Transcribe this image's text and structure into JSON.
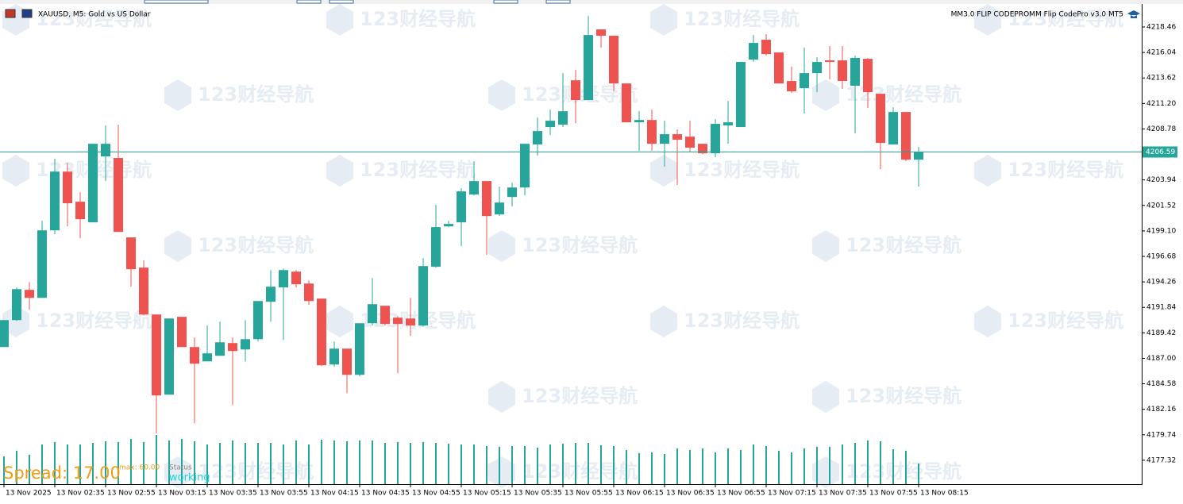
{
  "chart_data": {
    "type": "candlestick",
    "title": "XAUUSD, M5:  Gold vs US Dollar",
    "indicator": "MM3.0 FLIP CODEPROMM Flip CodePro v3.0 MT5",
    "watermark": "123财经导航",
    "up_color": "#26a69a",
    "down_color": "#ef5350",
    "categories": [
      "13 Nov 2025",
      null,
      null,
      null,
      "13 Nov 02:35",
      null,
      null,
      null,
      "13 Nov 02:55",
      null,
      null,
      null,
      "13 Nov 03:15",
      null,
      null,
      null,
      "13 Nov 03:35",
      null,
      null,
      null,
      "13 Nov 03:55",
      null,
      null,
      null,
      "13 Nov 04:15",
      null,
      null,
      null,
      "13 Nov 04:35",
      null,
      null,
      null,
      "13 Nov 04:55",
      null,
      null,
      null,
      "13 Nov 05:15",
      null,
      null,
      null,
      "13 Nov 05:35",
      null,
      null,
      null,
      "13 Nov 05:55",
      null,
      null,
      null,
      "13 Nov 06:15",
      null,
      null,
      null,
      "13 Nov 06:35",
      null,
      null,
      null,
      "13 Nov 06:55",
      null,
      null,
      null,
      "13 Nov 07:15",
      null,
      null,
      null,
      "13 Nov 07:35",
      null,
      null,
      null,
      "13 Nov 07:55",
      null,
      null,
      null,
      "13 Nov 08:15"
    ],
    "open": [
      4188.07,
      4190.63,
      4193.5,
      4192.74,
      4199.15,
      4204.73,
      4201.87,
      4199.91,
      4206.17,
      4206.02,
      4198.48,
      4195.61,
      4191.16,
      4183.55,
      4190.94,
      4188.07,
      4186.71,
      4187.24,
      4188.45,
      4187.84,
      4188.82,
      4192.37,
      4193.73,
      4195.23,
      4194.1,
      4192.67,
      4186.41,
      4187.92,
      4185.43,
      4190.33,
      4191.99,
      4190.86,
      4190.78,
      4190.11,
      4195.69,
      4199.53,
      4199.91,
      4202.55,
      4203.83,
      4200.66,
      4202.32,
      4203.22,
      4207.3,
      4208.96,
      4209.18,
      4213.4,
      4211.52,
      4218.23,
      4217.63,
      4213.1,
      4209.41,
      4209.63,
      4207.37,
      4208.28,
      4208.05,
      4207.37,
      4206.47,
      4209.11,
      4208.96,
      4215.36,
      4217.25,
      4216.04,
      4213.33,
      4212.65,
      4214.08,
      4215.29,
      4215.29,
      4212.88,
      4215.44,
      4212.12,
      4207.3,
      4210.39,
      4205.86
    ],
    "high": [
      4190.63,
      4193.73,
      4194.25,
      4200.06,
      4205.94,
      4205.56,
      4202.77,
      4207.37,
      4209.11,
      4209.18,
      4198.48,
      4196.29,
      4191.16,
      4190.78,
      4190.94,
      4188.97,
      4190.11,
      4190.48,
      4188.97,
      4190.63,
      4192.44,
      4195.38,
      4195.53,
      4195.38,
      4194.4,
      4192.67,
      4188.6,
      4187.92,
      4190.33,
      4194.63,
      4191.99,
      4191.01,
      4192.74,
      4196.51,
      4201.57,
      4200.06,
      4203.15,
      4205.71,
      4203.83,
      4203.3,
      4203.68,
      4207.37,
      4209.86,
      4210.61,
      4214.08,
      4214.38,
      4219.51,
      4218.23,
      4217.63,
      4213.1,
      4210.46,
      4210.61,
      4209.56,
      4208.73,
      4209.56,
      4207.37,
      4209.71,
      4211.44,
      4215.14,
      4217.7,
      4217.78,
      4216.04,
      4214.69,
      4216.5,
      4215.59,
      4216.65,
      4216.65,
      4215.74,
      4215.52,
      4212.12,
      4210.84,
      4210.39,
      4207.07
    ],
    "low": [
      4188.07,
      4190.56,
      4191.61,
      4192.74,
      4198.78,
      4199.53,
      4198.4,
      4199.91,
      4203.83,
      4199.0,
      4193.8,
      4191.09,
      4179.85,
      4183.55,
      4188.07,
      4180.83,
      4186.71,
      4187.24,
      4182.57,
      4186.71,
      4188.6,
      4190.48,
      4188.75,
      4193.73,
      4192.07,
      4186.26,
      4186.19,
      4183.7,
      4185.28,
      4190.11,
      4190.11,
      4185.58,
      4189.13,
      4190.03,
      4195.61,
      4199.46,
      4197.65,
      4202.47,
      4196.82,
      4200.51,
      4201.42,
      4202.47,
      4206.24,
      4208.2,
      4208.96,
      4209.33,
      4211.52,
      4216.5,
      4212.35,
      4209.41,
      4206.69,
      4206.69,
      4205.19,
      4203.45,
      4206.62,
      4206.39,
      4206.09,
      4207.37,
      4208.96,
      4215.14,
      4215.74,
      4213.1,
      4212.2,
      4210.24,
      4212.27,
      4213.48,
      4212.58,
      4208.35,
      4210.77,
      4204.96,
      4207.3,
      4205.71,
      4203.3
    ],
    "close": [
      4190.63,
      4193.57,
      4192.74,
      4199.15,
      4204.73,
      4201.72,
      4200.21,
      4207.37,
      4207.37,
      4199.0,
      4195.46,
      4191.16,
      4183.47,
      4190.78,
      4188.07,
      4186.49,
      4187.47,
      4188.52,
      4187.69,
      4188.82,
      4192.44,
      4193.8,
      4195.38,
      4194.03,
      4192.44,
      4186.34,
      4187.92,
      4185.43,
      4190.33,
      4192.14,
      4190.26,
      4190.26,
      4190.11,
      4195.76,
      4199.46,
      4199.76,
      4202.85,
      4203.83,
      4200.51,
      4201.79,
      4203.22,
      4207.37,
      4208.58,
      4209.56,
      4210.46,
      4211.52,
      4217.7,
      4217.63,
      4213.1,
      4209.41,
      4209.63,
      4207.37,
      4208.28,
      4207.75,
      4207.0,
      4206.47,
      4209.26,
      4209.41,
      4215.14,
      4216.95,
      4215.89,
      4213.1,
      4212.35,
      4214.08,
      4215.14,
      4215.14,
      4213.33,
      4215.52,
      4212.27,
      4207.45,
      4210.39,
      4205.86,
      4206.59
    ],
    "volumes": [
      35,
      42,
      37,
      50,
      53,
      50,
      50,
      52,
      54,
      53,
      57,
      53,
      62,
      55,
      57,
      54,
      50,
      52,
      55,
      52,
      52,
      52,
      50,
      55,
      50,
      56,
      55,
      54,
      55,
      55,
      52,
      53,
      52,
      53,
      52,
      51,
      50,
      50,
      48,
      47,
      48,
      48,
      46,
      50,
      51,
      52,
      52,
      49,
      48,
      43,
      39,
      40,
      38,
      45,
      43,
      45,
      40,
      45,
      43,
      50,
      48,
      42,
      40,
      45,
      47,
      47,
      50,
      52,
      55,
      54,
      44,
      42,
      26
    ],
    "current_price": 4206.59,
    "ylim": [
      4175.05,
      4220.42
    ],
    "yticks": [
      4218.46,
      4216.04,
      4213.62,
      {
        "value": 4211.2,
        "label": "4211.20"
      },
      4208.78,
      4203.94,
      4201.52,
      {
        "value": 4199.1,
        "label": "4199.10"
      },
      4196.68,
      4194.26,
      4191.84,
      4189.42,
      {
        "value": 4187,
        "label": "4187.00"
      },
      4184.58,
      4182.16,
      4179.74,
      4177.32
    ],
    "spread": "Spread: 17.00",
    "spread_max": "max: 60.00",
    "status_label": "Status",
    "status": "working"
  }
}
